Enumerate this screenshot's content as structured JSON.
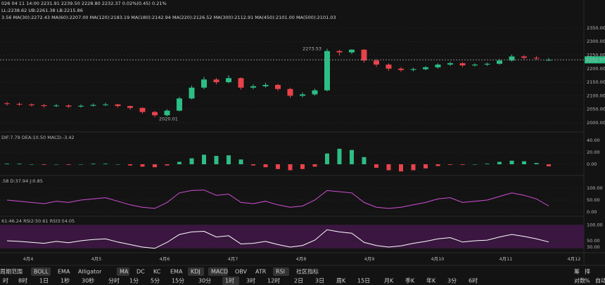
{
  "header": {
    "lines": [
      "026 04 11 14:00  2231.91  2239.50  2228.80  2232.37  0.02%(0.45)  0.21%",
      "LL:2238.62  UB:2261.38  LB:2215.86",
      "3.56  MA(30):2272.43  MA(60):2207.00  MA(120):2183.19  MA(180):2142.94  MA(220):2126.52  MA(300):2112.91  MA(450):2101.00  MA(500):2101.03"
    ]
  },
  "price_chart": {
    "up_color": "#2dbd85",
    "down_color": "#e8424b",
    "yticks": [
      {
        "value": 2350,
        "label": "2350.00"
      },
      {
        "value": 2300,
        "label": "2300.00"
      },
      {
        "value": 2250,
        "label": "2250.00"
      },
      {
        "value": 2200,
        "label": "2200.00"
      },
      {
        "value": 2150,
        "label": "2150.00"
      },
      {
        "value": 2100,
        "label": "2100.00"
      },
      {
        "value": 2050,
        "label": "2050.00"
      },
      {
        "value": 2000,
        "label": "2000.00"
      }
    ],
    "last_price": {
      "value": 2232.37,
      "label": "2232.37"
    },
    "high_note": 2273.53,
    "low_note": 2020.01,
    "candles": [
      [
        2072,
        2078,
        2064,
        2070
      ],
      [
        2070,
        2075,
        2062,
        2068
      ],
      [
        2068,
        2072,
        2060,
        2065
      ],
      [
        2065,
        2070,
        2056,
        2062
      ],
      [
        2062,
        2070,
        2058,
        2064
      ],
      [
        2064,
        2068,
        2054,
        2060
      ],
      [
        2060,
        2068,
        2056,
        2063
      ],
      [
        2063,
        2072,
        2060,
        2066
      ],
      [
        2066,
        2074,
        2062,
        2068
      ],
      [
        2068,
        2070,
        2056,
        2062
      ],
      [
        2062,
        2064,
        2048,
        2055
      ],
      [
        2055,
        2058,
        2034,
        2040
      ],
      [
        2040,
        2044,
        2020.01,
        2028
      ],
      [
        2028,
        2050,
        2024,
        2045
      ],
      [
        2045,
        2096,
        2042,
        2090
      ],
      [
        2090,
        2138,
        2086,
        2130
      ],
      [
        2130,
        2170,
        2124,
        2160
      ],
      [
        2160,
        2166,
        2142,
        2150
      ],
      [
        2150,
        2176,
        2146,
        2165
      ],
      [
        2165,
        2168,
        2122,
        2130
      ],
      [
        2130,
        2142,
        2124,
        2135
      ],
      [
        2135,
        2148,
        2130,
        2140
      ],
      [
        2140,
        2144,
        2118,
        2125
      ],
      [
        2125,
        2130,
        2092,
        2100
      ],
      [
        2100,
        2112,
        2094,
        2105
      ],
      [
        2105,
        2126,
        2100,
        2120
      ],
      [
        2120,
        2273.53,
        2116,
        2265
      ],
      [
        2265,
        2270,
        2248,
        2260
      ],
      [
        2260,
        2272,
        2254,
        2270
      ],
      [
        2270,
        2272,
        2222,
        2230
      ],
      [
        2230,
        2236,
        2206,
        2215
      ],
      [
        2215,
        2220,
        2192,
        2200
      ],
      [
        2200,
        2206,
        2188,
        2195
      ],
      [
        2195,
        2204,
        2190,
        2198
      ],
      [
        2198,
        2210,
        2194,
        2205
      ],
      [
        2205,
        2220,
        2200,
        2215
      ],
      [
        2215,
        2226,
        2210,
        2220
      ],
      [
        2220,
        2224,
        2206,
        2212
      ],
      [
        2212,
        2220,
        2208,
        2215
      ],
      [
        2215,
        2222,
        2210,
        2218
      ],
      [
        2218,
        2236,
        2214,
        2230
      ],
      [
        2230,
        2252,
        2226,
        2245
      ],
      [
        2245,
        2250,
        2234,
        2240
      ],
      [
        2240,
        2246,
        2232,
        2238
      ],
      [
        2231.91,
        2239.5,
        2228.8,
        2232.37
      ]
    ]
  },
  "macd": {
    "label": "DIF:7.79  DEA:10.50  MACD:-3.42",
    "yticks": [
      {
        "value": 40,
        "label": "40.00"
      },
      {
        "value": 20,
        "label": "20.00"
      },
      {
        "value": 0,
        "label": "0.00"
      }
    ],
    "histogram": [
      1,
      1,
      0,
      -1,
      0,
      -1,
      0,
      1,
      1,
      0,
      -2,
      -4,
      -5,
      -2,
      4,
      10,
      16,
      14,
      15,
      8,
      -2,
      -5,
      -8,
      -10,
      -8,
      -4,
      18,
      26,
      24,
      12,
      -6,
      -10,
      -12,
      -10,
      -7,
      -3,
      -1,
      -1,
      0,
      1,
      4,
      6,
      5,
      2,
      -3.42
    ]
  },
  "kdj": {
    "label": ".58  D:37.94  J:0.85",
    "color": "#d24fd6",
    "yticks": [
      {
        "value": 100,
        "label": "100.00"
      },
      {
        "value": 50,
        "label": "50.00"
      },
      {
        "value": 0,
        "label": "0.00"
      }
    ],
    "k": [
      50,
      45,
      40,
      35,
      45,
      40,
      50,
      55,
      60,
      45,
      30,
      20,
      15,
      40,
      80,
      90,
      92,
      70,
      75,
      40,
      35,
      45,
      30,
      20,
      25,
      50,
      90,
      85,
      80,
      40,
      20,
      15,
      20,
      30,
      40,
      55,
      60,
      40,
      45,
      50,
      65,
      80,
      70,
      55,
      25
    ]
  },
  "rsi": {
    "label": "61:46.24  RSI2:50.61  RSI3:54.05",
    "color": "#ffffff",
    "yticks": [
      {
        "value": 100,
        "label": "100.00"
      },
      {
        "value": 50,
        "label": "50.00"
      },
      {
        "value": 30,
        "label": "30.00"
      }
    ],
    "rsi1": [
      50,
      48,
      45,
      42,
      48,
      44,
      50,
      54,
      56,
      46,
      38,
      30,
      26,
      45,
      70,
      78,
      80,
      62,
      66,
      40,
      42,
      48,
      38,
      30,
      35,
      52,
      85,
      78,
      74,
      45,
      35,
      30,
      34,
      42,
      48,
      56,
      60,
      46,
      50,
      52,
      62,
      70,
      64,
      56,
      46.24
    ]
  },
  "date_axis": [
    "4月4",
    "4月5",
    "4月6",
    "4月7",
    "4月8",
    "4月9",
    "4月10",
    "4月11",
    "4月12"
  ],
  "indicator_bar": {
    "title": "周期范围",
    "items": [
      {
        "label": "BOLL",
        "active": true
      },
      {
        "label": "EMA",
        "active": false
      },
      {
        "label": "Alligator",
        "active": false
      },
      {
        "label": "MA",
        "active": true
      },
      {
        "label": "DC",
        "active": false
      },
      {
        "label": "KC",
        "active": false
      },
      {
        "label": "EMA",
        "active": false
      },
      {
        "label": "KDJ",
        "active": true
      },
      {
        "label": "MACD",
        "active": true
      },
      {
        "label": "OBV",
        "active": false
      },
      {
        "label": "ATR",
        "active": false
      },
      {
        "label": "RSI",
        "active": true
      },
      {
        "label": "社区指标",
        "active": false
      }
    ],
    "right": [
      "筹",
      "择"
    ]
  },
  "interval_bar": {
    "items": [
      {
        "label": "时",
        "active": false
      },
      {
        "label": "8时",
        "active": false
      },
      {
        "label": "1日",
        "active": false
      },
      {
        "label": "1秒",
        "active": false
      },
      {
        "label": "30秒",
        "active": false
      },
      {
        "label": "分时",
        "active": false
      },
      {
        "label": "1分",
        "active": false
      },
      {
        "label": "5分",
        "active": false
      },
      {
        "label": "15分",
        "active": false
      },
      {
        "label": "30分",
        "active": false
      },
      {
        "label": "1时",
        "active": true
      },
      {
        "label": "3时",
        "active": false
      },
      {
        "label": "12时",
        "active": false
      },
      {
        "label": "2日",
        "active": false
      },
      {
        "label": "3日",
        "active": false
      },
      {
        "label": "周K",
        "active": false
      },
      {
        "label": "15日",
        "active": false
      },
      {
        "label": "月K",
        "active": false
      },
      {
        "label": "季K",
        "active": false
      },
      {
        "label": "年K",
        "active": false
      },
      {
        "label": "3分",
        "active": false
      },
      {
        "label": "6时",
        "active": false
      }
    ],
    "right": [
      "对数",
      "%",
      "自动"
    ]
  }
}
